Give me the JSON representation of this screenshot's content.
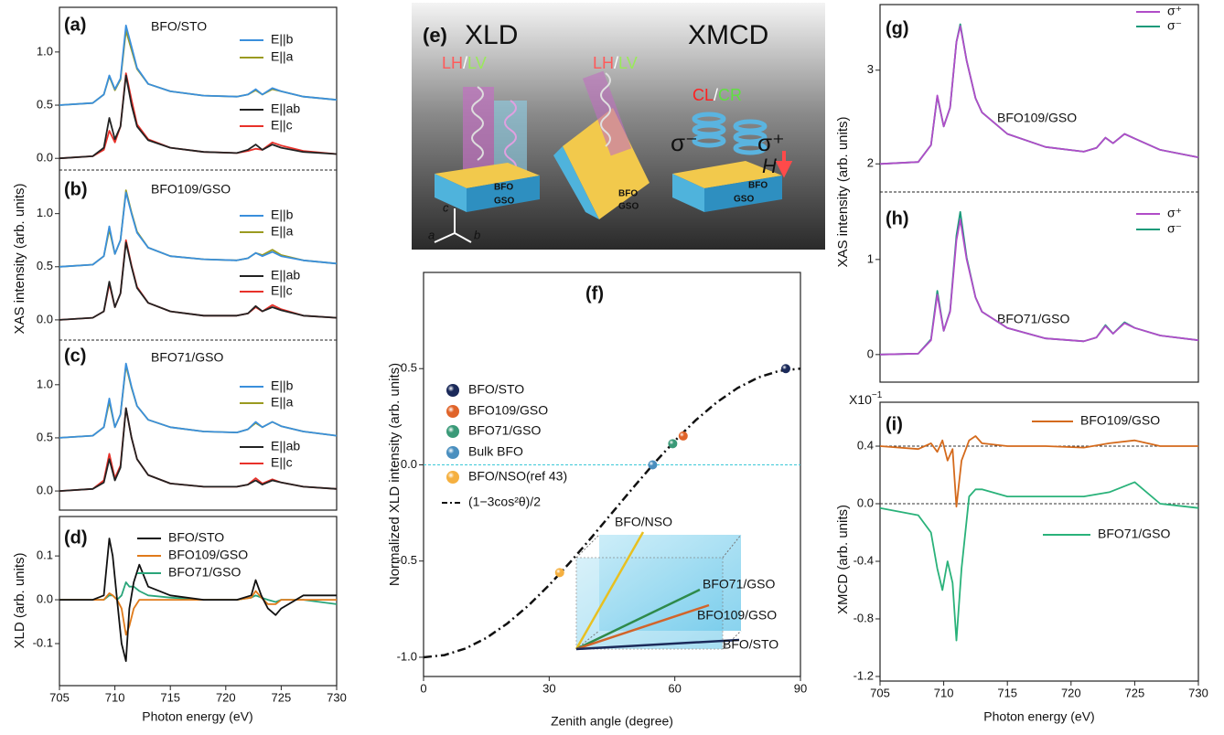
{
  "chart_data": [
    {
      "type": "line",
      "panel": "(a)",
      "title": "BFO/STO",
      "ylabel": "XAS intensity (arb. units)",
      "x": [
        705,
        708,
        709,
        709.5,
        710,
        710.5,
        711,
        711.5,
        712,
        713,
        715,
        718,
        721,
        722,
        722.7,
        723.3,
        724.2,
        725,
        727,
        730
      ],
      "xlim": [
        705,
        730
      ],
      "ylim": [
        -0.11,
        1.42
      ],
      "yticks": [
        {
          "value": 0,
          "label": "0.0"
        },
        0.5,
        {
          "value": 1,
          "label": "1.0"
        }
      ],
      "series": [
        {
          "name": "E||b",
          "color": "#3a8fdc",
          "values": [
            0.5,
            0.52,
            0.6,
            0.78,
            0.65,
            0.75,
            1.25,
            1.05,
            0.85,
            0.7,
            0.63,
            0.59,
            0.58,
            0.6,
            0.65,
            0.6,
            0.66,
            0.63,
            0.58,
            0.55
          ]
        },
        {
          "name": "E||a",
          "color": "#9a9a20",
          "values": [
            0.5,
            0.52,
            0.6,
            0.77,
            0.64,
            0.74,
            1.2,
            1.02,
            0.84,
            0.7,
            0.63,
            0.59,
            0.58,
            0.6,
            0.64,
            0.6,
            0.65,
            0.63,
            0.58,
            0.55
          ]
        },
        {
          "name": "E||ab",
          "color": "#222222",
          "values": [
            0,
            0.02,
            0.1,
            0.38,
            0.18,
            0.3,
            0.78,
            0.5,
            0.3,
            0.17,
            0.1,
            0.06,
            0.05,
            0.08,
            0.13,
            0.08,
            0.13,
            0.1,
            0.06,
            0.04
          ]
        },
        {
          "name": "E||c",
          "color": "#e8312a",
          "values": [
            0,
            0.02,
            0.08,
            0.26,
            0.15,
            0.3,
            0.8,
            0.55,
            0.32,
            0.18,
            0.1,
            0.06,
            0.05,
            0.07,
            0.09,
            0.08,
            0.15,
            0.12,
            0.07,
            0.04
          ]
        }
      ]
    },
    {
      "type": "line",
      "panel": "(b)",
      "title": "BFO109/GSO",
      "x": [
        705,
        708,
        709,
        709.5,
        710,
        710.5,
        711,
        711.5,
        712,
        713,
        715,
        718,
        721,
        722,
        722.7,
        723.3,
        724.2,
        725,
        727,
        730
      ],
      "xlim": [
        705,
        730
      ],
      "ylim": [
        -0.19,
        1.41
      ],
      "yticks": [
        {
          "value": 0,
          "label": "0.0"
        },
        0.5,
        {
          "value": 1,
          "label": "1.0"
        }
      ],
      "series": [
        {
          "name": "E||b",
          "color": "#3a8fdc",
          "values": [
            0.5,
            0.52,
            0.6,
            0.88,
            0.62,
            0.75,
            1.2,
            1.0,
            0.82,
            0.68,
            0.6,
            0.57,
            0.56,
            0.58,
            0.63,
            0.6,
            0.64,
            0.6,
            0.56,
            0.53
          ]
        },
        {
          "name": "E||a",
          "color": "#9a9a20",
          "values": [
            0.5,
            0.52,
            0.6,
            0.85,
            0.62,
            0.75,
            1.22,
            1.01,
            0.83,
            0.68,
            0.6,
            0.57,
            0.56,
            0.58,
            0.63,
            0.61,
            0.66,
            0.61,
            0.56,
            0.53
          ]
        },
        {
          "name": "E||ab",
          "color": "#222222",
          "values": [
            0,
            0.02,
            0.08,
            0.36,
            0.12,
            0.25,
            0.73,
            0.5,
            0.3,
            0.16,
            0.08,
            0.04,
            0.04,
            0.06,
            0.13,
            0.08,
            0.12,
            0.09,
            0.04,
            0.02
          ]
        },
        {
          "name": "E||c",
          "color": "#e8312a",
          "values": [
            0,
            0.02,
            0.08,
            0.34,
            0.12,
            0.25,
            0.75,
            0.51,
            0.31,
            0.16,
            0.08,
            0.04,
            0.04,
            0.06,
            0.12,
            0.08,
            0.14,
            0.1,
            0.04,
            0.02
          ]
        }
      ]
    },
    {
      "type": "line",
      "panel": "(c)",
      "title": "BFO71/GSO",
      "x": [
        705,
        708,
        709,
        709.5,
        710,
        710.5,
        711,
        711.5,
        712,
        713,
        715,
        718,
        721,
        722,
        722.7,
        723.3,
        724.2,
        725,
        727,
        730
      ],
      "xlim": [
        705,
        730
      ],
      "ylim": [
        -0.18,
        1.42
      ],
      "yticks": [
        {
          "value": 0,
          "label": "0.0"
        },
        0.5,
        {
          "value": 1,
          "label": "1.0"
        }
      ],
      "series": [
        {
          "name": "E||b",
          "color": "#3a8fdc",
          "values": [
            0.5,
            0.52,
            0.6,
            0.87,
            0.6,
            0.72,
            1.2,
            0.98,
            0.8,
            0.67,
            0.6,
            0.56,
            0.55,
            0.58,
            0.65,
            0.6,
            0.65,
            0.61,
            0.56,
            0.52
          ]
        },
        {
          "name": "E||a",
          "color": "#9a9a20",
          "values": [
            0.5,
            0.52,
            0.6,
            0.84,
            0.6,
            0.72,
            1.18,
            0.97,
            0.8,
            0.67,
            0.6,
            0.56,
            0.55,
            0.58,
            0.64,
            0.6,
            0.65,
            0.61,
            0.56,
            0.52
          ]
        },
        {
          "name": "E||ab",
          "color": "#222222",
          "values": [
            0,
            0.02,
            0.08,
            0.3,
            0.1,
            0.22,
            0.78,
            0.5,
            0.3,
            0.15,
            0.07,
            0.04,
            0.04,
            0.06,
            0.1,
            0.06,
            0.1,
            0.08,
            0.04,
            0.02
          ]
        },
        {
          "name": "E||c",
          "color": "#e8312a",
          "values": [
            0,
            0.02,
            0.1,
            0.35,
            0.12,
            0.24,
            0.78,
            0.5,
            0.3,
            0.15,
            0.07,
            0.04,
            0.04,
            0.06,
            0.12,
            0.07,
            0.11,
            0.08,
            0.04,
            0.02
          ]
        }
      ]
    },
    {
      "type": "line",
      "panel": "(d)",
      "ylabel": "XLD (arb. units)",
      "xlabel": "Photon energy (eV)",
      "x": [
        705,
        708,
        709,
        709.5,
        709.8,
        710.2,
        710.6,
        711,
        711.3,
        711.7,
        712.2,
        713,
        715,
        718,
        721,
        722.3,
        722.7,
        723.2,
        723.8,
        724.5,
        725,
        727,
        730
      ],
      "xlim": [
        705,
        730
      ],
      "xticks": [
        705,
        710,
        715,
        720,
        725,
        730
      ],
      "ylim": [
        -0.196,
        0.19
      ],
      "yticks": [
        -0.1,
        {
          "value": 0,
          "label": "0.0"
        },
        0.1
      ],
      "series": [
        {
          "name": "BFO/STO",
          "color": "#111111",
          "values": [
            0,
            0,
            0.01,
            0.14,
            0.1,
            0,
            -0.1,
            -0.14,
            -0.02,
            0.04,
            0.08,
            0.03,
            0.01,
            0,
            0,
            0.01,
            0.045,
            0.01,
            -0.02,
            -0.035,
            -0.02,
            0.01,
            0.01
          ]
        },
        {
          "name": "BFO109/GSO",
          "color": "#e07a1a",
          "values": [
            0,
            0,
            0,
            0.015,
            0.01,
            0,
            -0.02,
            -0.08,
            -0.06,
            -0.02,
            0,
            0,
            0,
            0,
            0,
            0.005,
            0.02,
            0.005,
            -0.01,
            -0.01,
            0,
            0,
            0
          ]
        },
        {
          "name": "BFO71/GSO",
          "color": "#2aa57a",
          "values": [
            0,
            0,
            0,
            0.01,
            0.01,
            0,
            0.01,
            0.04,
            0.03,
            0.03,
            0.02,
            0.01,
            0.005,
            0,
            0,
            0.005,
            0.01,
            0.005,
            0,
            -0.005,
            0,
            0,
            -0.01
          ]
        }
      ]
    },
    {
      "type": "scatter",
      "panel": "(f)",
      "xlabel": "Zenith angle (degree)",
      "ylabel": "Normalized XLD intensity (arb. units)",
      "xlim": [
        0,
        90
      ],
      "xticks": [
        0,
        30,
        60,
        90
      ],
      "ylim": [
        -1.1,
        1.0
      ],
      "yticks": [
        {
          "value": -1,
          "label": "-1.0"
        },
        -0.5,
        {
          "value": 0,
          "label": "0.0"
        },
        0.5
      ],
      "hline": 0,
      "series": [
        {
          "name": "BFO/STO",
          "color": "#1b2a5a",
          "x": [
            86.5
          ],
          "values": [
            0.5
          ]
        },
        {
          "name": "BFO109/GSO",
          "color": "#e0642a",
          "x": [
            62
          ],
          "values": [
            0.15
          ]
        },
        {
          "name": "BFO71/GSO",
          "color": "#3a9a78",
          "x": [
            59.5
          ],
          "values": [
            0.11
          ]
        },
        {
          "name": "Bulk BFO",
          "color": "#4a8fbf",
          "x": [
            54.7
          ],
          "values": [
            0
          ]
        },
        {
          "name": "BFO/NSO(ref 43)",
          "color": "#f5b040",
          "x": [
            32.5
          ],
          "values": [
            -0.56
          ]
        }
      ],
      "curve": {
        "name": "(1−3cos²θ)/2",
        "color": "#111111",
        "x": [
          0,
          5,
          10,
          15,
          20,
          25,
          30,
          35,
          40,
          45,
          50,
          55,
          60,
          65,
          70,
          75,
          80,
          85,
          90
        ],
        "values": [
          -1,
          -0.9886,
          -0.9548,
          -0.8995,
          -0.8245,
          -0.7321,
          -0.625,
          -0.5065,
          -0.3802,
          -0.25,
          -0.1198,
          0.0065,
          0.125,
          0.2321,
          0.3245,
          0.3995,
          0.4548,
          0.4886,
          0.5
        ]
      },
      "inset_labels": [
        "BFO/NSO",
        "BFO71/GSO",
        "BFO109/GSO",
        "BFO/STO"
      ]
    },
    {
      "type": "line",
      "panel": "(g)",
      "title": "BFO109/GSO",
      "ylabel": "XAS intensity (arb. units)",
      "x": [
        705,
        708,
        709,
        709.5,
        710,
        710.5,
        711,
        711.3,
        711.8,
        712.5,
        713,
        715,
        718,
        721,
        722,
        722.7,
        723.3,
        724.2,
        725,
        727,
        730
      ],
      "xlim": [
        705,
        730
      ],
      "ylim": [
        1.7,
        3.7
      ],
      "yticks": [
        2,
        3
      ],
      "series": [
        {
          "name": "σ⁺",
          "color": "#b04cc8",
          "values": [
            2.0,
            2.02,
            2.2,
            2.73,
            2.4,
            2.6,
            3.3,
            3.47,
            3.1,
            2.7,
            2.55,
            2.32,
            2.18,
            2.13,
            2.17,
            2.28,
            2.22,
            2.32,
            2.27,
            2.15,
            2.07
          ]
        },
        {
          "name": "σ⁻",
          "color": "#1a9a7a",
          "values": [
            2.0,
            2.02,
            2.2,
            2.72,
            2.4,
            2.6,
            3.3,
            3.49,
            3.1,
            2.7,
            2.55,
            2.32,
            2.18,
            2.13,
            2.17,
            2.28,
            2.22,
            2.32,
            2.27,
            2.15,
            2.07
          ]
        }
      ]
    },
    {
      "type": "line",
      "panel": "(h)",
      "title": "BFO71/GSO",
      "x": [
        705,
        708,
        709,
        709.5,
        710,
        710.5,
        711,
        711.3,
        711.8,
        712.5,
        713,
        715,
        718,
        721,
        722,
        722.7,
        723.3,
        724.2,
        725,
        727,
        730
      ],
      "xlim": [
        705,
        730
      ],
      "ylim": [
        -0.29,
        1.71
      ],
      "yticks": [
        0,
        1
      ],
      "series": [
        {
          "name": "σ⁺",
          "color": "#b04cc8",
          "values": [
            0,
            0.01,
            0.15,
            0.63,
            0.25,
            0.45,
            1.2,
            1.42,
            1.0,
            0.6,
            0.45,
            0.28,
            0.17,
            0.14,
            0.18,
            0.3,
            0.22,
            0.33,
            0.28,
            0.2,
            0.15
          ]
        },
        {
          "name": "σ⁻",
          "color": "#1a9a7a",
          "values": [
            0,
            0.01,
            0.16,
            0.67,
            0.25,
            0.46,
            1.25,
            1.5,
            1.02,
            0.6,
            0.45,
            0.28,
            0.17,
            0.14,
            0.18,
            0.31,
            0.22,
            0.34,
            0.28,
            0.2,
            0.15
          ]
        }
      ]
    },
    {
      "type": "line",
      "panel": "(i)",
      "ylabel": "XMCD (arb. units)",
      "xlabel": "Photon energy (eV)",
      "scale_label": "X10",
      "scale_exponent": "−1",
      "x": [
        705,
        708,
        709,
        709.5,
        709.9,
        710.3,
        710.7,
        711,
        711.4,
        712,
        712.5,
        713,
        715,
        718,
        721,
        723,
        725,
        727,
        730
      ],
      "xlim": [
        705,
        730
      ],
      "xticks": [
        705,
        710,
        715,
        720,
        725,
        730
      ],
      "ylim": [
        -1.232,
        0.705
      ],
      "yticks": [
        0.4,
        {
          "value": 0,
          "label": "0.0"
        },
        -0.4,
        -0.8,
        -1.2
      ],
      "ref_lines": [
        0.4,
        0
      ],
      "series": [
        {
          "name": "BFO109/GSO",
          "color": "#d46a1c",
          "values": [
            0.4,
            0.38,
            0.42,
            0.36,
            0.44,
            0.3,
            0.38,
            -0.02,
            0.3,
            0.44,
            0.47,
            0.42,
            0.4,
            0.4,
            0.39,
            0.42,
            0.44,
            0.4,
            0.4
          ]
        },
        {
          "name": "BFO71/GSO",
          "color": "#2ab27a",
          "values": [
            -0.03,
            -0.08,
            -0.2,
            -0.45,
            -0.6,
            -0.4,
            -0.55,
            -0.95,
            -0.45,
            0.05,
            0.1,
            0.1,
            0.05,
            0.05,
            0.05,
            0.08,
            0.15,
            0,
            -0.03
          ]
        }
      ]
    }
  ],
  "illustration": {
    "panel": "(e)",
    "titles": [
      "XLD",
      "XMCD"
    ],
    "pol_labels": [
      [
        "LH",
        "/",
        "LV"
      ],
      [
        "LH",
        "/",
        "LV"
      ],
      [
        "CL",
        "/",
        "CR"
      ]
    ],
    "sigma": [
      "σ⁻",
      "σ⁺"
    ],
    "field": "H",
    "layers": [
      [
        "BFO",
        "GSO"
      ],
      [
        "BFO",
        "GSO"
      ],
      [
        "BFO",
        "GSO"
      ]
    ],
    "axes": [
      "a",
      "b",
      "c"
    ]
  }
}
